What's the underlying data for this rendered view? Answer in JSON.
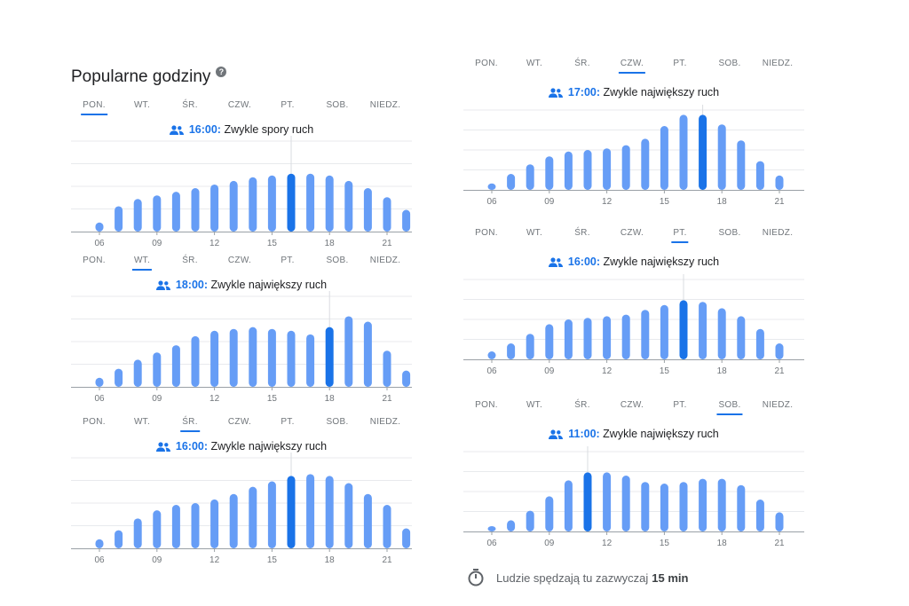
{
  "title": "Popularne godziny",
  "help_icon": "?",
  "days": [
    "PON.",
    "WT.",
    "ŚR.",
    "CZW.",
    "PT.",
    "SOB.",
    "NIEDZ."
  ],
  "hours_axis": [
    "06",
    "09",
    "12",
    "15",
    "18",
    "21"
  ],
  "colors": {
    "bar": "#669df6",
    "highlight": "#1a73e8",
    "grid": "#e8eaed",
    "axis": "#9aa0a6"
  },
  "panels": [
    {
      "day": "PON.",
      "time": "16:00:",
      "label": "Zwykle spory ruch",
      "bars": [
        10,
        28,
        36,
        40,
        44,
        48,
        52,
        56,
        60,
        62,
        64,
        64,
        62,
        56,
        48,
        38,
        24
      ],
      "highlight_index": 10
    },
    {
      "day": "WT.",
      "time": "18:00:",
      "label": "Zwykle największy ruch",
      "bars": [
        10,
        20,
        30,
        38,
        46,
        56,
        62,
        64,
        66,
        64,
        62,
        58,
        66,
        78,
        72,
        40,
        18
      ],
      "highlight_index": 12
    },
    {
      "day": "ŚR.",
      "time": "16:00:",
      "label": "Zwykle największy ruch",
      "bars": [
        10,
        20,
        33,
        42,
        48,
        50,
        54,
        60,
        68,
        74,
        80,
        82,
        80,
        72,
        60,
        48,
        22
      ],
      "highlight_index": 10
    },
    {
      "day": "CZW.",
      "time": "17:00:",
      "label": "Zwykle największy ruch",
      "bars": [
        8,
        20,
        32,
        42,
        48,
        50,
        52,
        56,
        64,
        80,
        94,
        94,
        82,
        62,
        36,
        18
      ],
      "highlight_index": 11
    },
    {
      "day": "PT.",
      "time": "16:00:",
      "label": "Zwykle największy ruch",
      "bars": [
        10,
        20,
        32,
        44,
        50,
        52,
        54,
        56,
        62,
        68,
        74,
        72,
        64,
        54,
        38,
        20
      ],
      "highlight_index": 10
    },
    {
      "day": "SOB.",
      "time": "11:00:",
      "label": "Zwykle największy ruch",
      "bars": [
        6,
        14,
        26,
        44,
        64,
        74,
        74,
        70,
        62,
        60,
        62,
        66,
        66,
        58,
        40,
        24
      ],
      "highlight_index": 5
    }
  ],
  "dwell": {
    "prefix": "Ludzie spędzają tu zazwyczaj",
    "value": "15 min"
  }
}
